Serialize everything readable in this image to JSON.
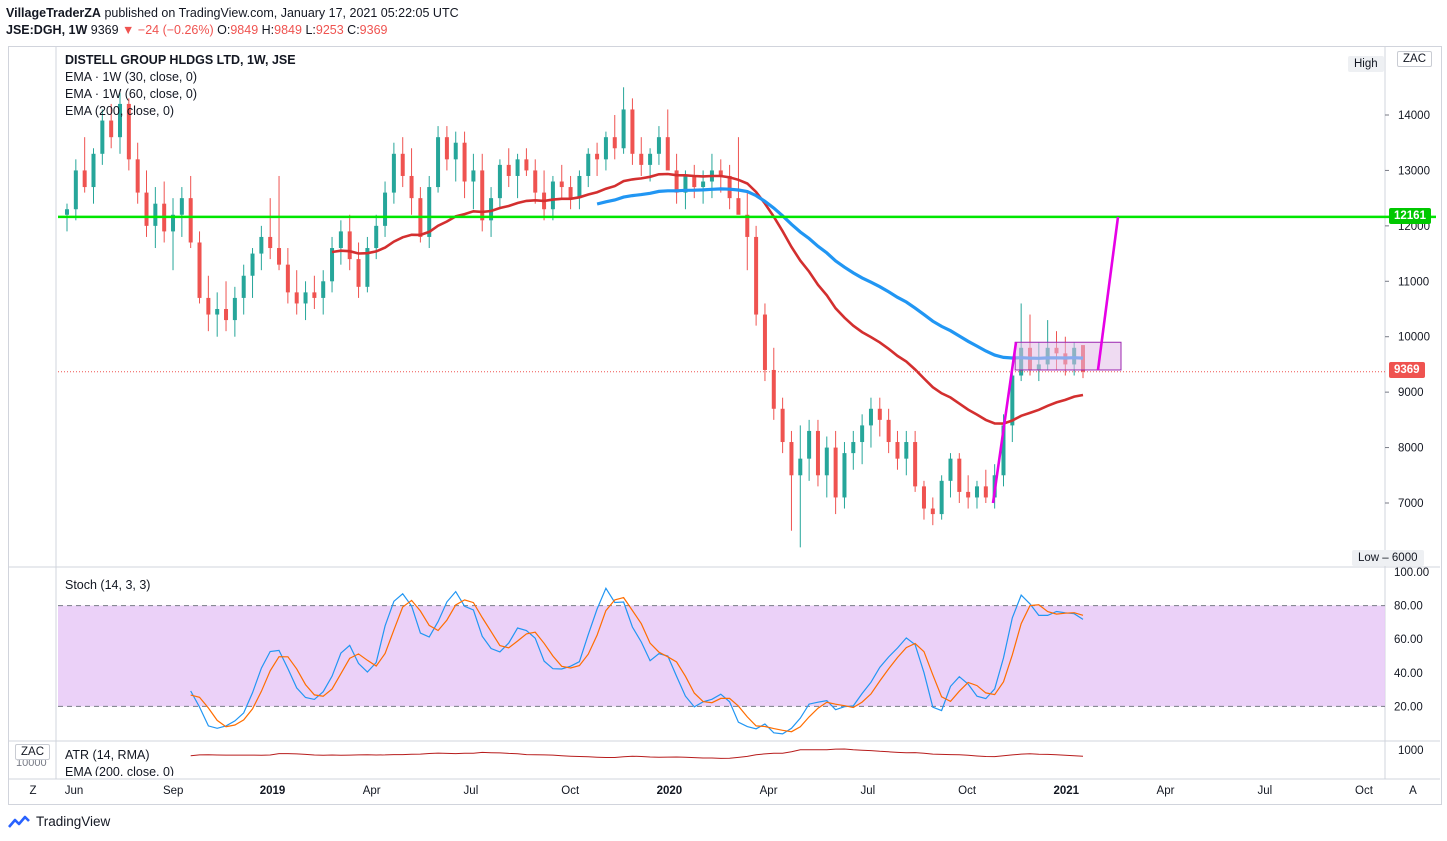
{
  "header": {
    "publisher": "VillageTraderZA",
    "published_text": "published on TradingView.com, January 17, 2021 05:22:05 UTC",
    "symbol": "JSE:DGH, 1W",
    "last": "9369",
    "change": "−24 (−0.26%)",
    "open_label": "O:",
    "open": "9849",
    "high_label": "H:",
    "high": "9849",
    "low_label": "L:",
    "low": "9253",
    "close_label": "C:",
    "close": "9369"
  },
  "legend": {
    "title": "DISTELL GROUP HLDGS LTD, 1W, JSE",
    "ema1": "EMA · 1W (30, close, 0)",
    "ema2": "EMA · 1W (60, close, 0)",
    "ema3": "EMA (200, close, 0)",
    "stoch": "Stoch (14, 3, 3)",
    "atr": "ATR (14, RMA)",
    "atr_ema": "EMA (200, close, 0)",
    "atr_partial": "10000"
  },
  "price_axis": {
    "currency": "ZAC",
    "high_label": "High",
    "low_label": "Low",
    "low_value": "6000",
    "ticks": [
      "14000",
      "13000",
      "12000",
      "11000",
      "10000",
      "9000",
      "8000",
      "7000"
    ],
    "level_label": "12161",
    "last_label": "9369"
  },
  "stoch_axis": {
    "ticks": [
      "100.00",
      "80.00",
      "60.00",
      "40.00",
      "20.00"
    ]
  },
  "atr_axis": {
    "ticks": [
      "1000"
    ],
    "currency": "ZAC"
  },
  "time_axis": {
    "labels": [
      "Jun",
      "Sep",
      "2019",
      "Apr",
      "Jul",
      "Oct",
      "2020",
      "Apr",
      "Jul",
      "Oct",
      "2021",
      "Apr",
      "Jul",
      "Oct"
    ],
    "left_button": "Z",
    "right_button": "A"
  },
  "footer": {
    "brand": "TradingView"
  },
  "colors": {
    "up": "#26a69a",
    "down": "#ef5350",
    "ema30": "#d32f2f",
    "ema60": "#2196f3",
    "support": "#00e600",
    "projection": "#e600e6",
    "box": "#e1bee7",
    "stoch_k": "#2196f3",
    "stoch_d": "#ff6d00",
    "stoch_band": "#e8c9f7",
    "atr": "#b71c1c"
  },
  "chart_data": [
    {
      "type": "candlestick",
      "title": "DISTELL GROUP HLDGS LTD, 1W, JSE",
      "ylim": [
        6000,
        14500
      ],
      "x_range": [
        "2018-06",
        "2021-10"
      ],
      "candles_ohlc_weekly": [
        [
          12200,
          12400,
          11900,
          12300
        ],
        [
          12300,
          13200,
          12100,
          13000
        ],
        [
          13000,
          13600,
          12600,
          12700
        ],
        [
          12700,
          13400,
          12400,
          13300
        ],
        [
          13300,
          14100,
          13100,
          13900
        ],
        [
          13900,
          14200,
          13400,
          13600
        ],
        [
          13600,
          14400,
          13300,
          14200
        ],
        [
          14200,
          14300,
          13000,
          13200
        ],
        [
          13200,
          13500,
          12400,
          12600
        ],
        [
          12600,
          13000,
          11800,
          12000
        ],
        [
          12000,
          12700,
          11600,
          12400
        ],
        [
          12400,
          12800,
          11700,
          11900
        ],
        [
          11900,
          12500,
          11200,
          12200
        ],
        [
          12200,
          12700,
          11800,
          12500
        ],
        [
          12500,
          12900,
          11600,
          11700
        ],
        [
          11700,
          11900,
          10600,
          10700
        ],
        [
          10700,
          11100,
          10100,
          10400
        ],
        [
          10400,
          10800,
          10000,
          10500
        ],
        [
          10500,
          11000,
          10100,
          10300
        ],
        [
          10300,
          10900,
          10000,
          10700
        ],
        [
          10700,
          11300,
          10400,
          11100
        ],
        [
          11100,
          11600,
          10700,
          11500
        ],
        [
          11500,
          12000,
          11200,
          11800
        ],
        [
          11800,
          12500,
          11400,
          11600
        ],
        [
          11600,
          12900,
          11200,
          11300
        ],
        [
          11300,
          11600,
          10600,
          10800
        ],
        [
          10800,
          11200,
          10400,
          10600
        ],
        [
          10600,
          11000,
          10300,
          10800
        ],
        [
          10800,
          11100,
          10500,
          10700
        ],
        [
          10700,
          11200,
          10400,
          11000
        ],
        [
          11000,
          11800,
          10800,
          11600
        ],
        [
          11600,
          12100,
          11300,
          11900
        ],
        [
          11900,
          12200,
          11200,
          11400
        ],
        [
          11400,
          11700,
          10700,
          10900
        ],
        [
          10900,
          11800,
          10800,
          11600
        ],
        [
          11600,
          12200,
          11400,
          12000
        ],
        [
          12000,
          12800,
          11800,
          12600
        ],
        [
          12600,
          13500,
          12400,
          13300
        ],
        [
          13300,
          13600,
          12700,
          12900
        ],
        [
          12900,
          13400,
          12200,
          12500
        ],
        [
          12500,
          12700,
          11700,
          11800
        ],
        [
          11800,
          12900,
          11600,
          12700
        ],
        [
          12700,
          13800,
          12600,
          13600
        ],
        [
          13600,
          13800,
          13000,
          13200
        ],
        [
          13200,
          13700,
          12800,
          13500
        ],
        [
          13500,
          13700,
          12500,
          12800
        ],
        [
          12800,
          13300,
          12300,
          13000
        ],
        [
          13000,
          13300,
          11900,
          12100
        ],
        [
          12100,
          12700,
          11800,
          12500
        ],
        [
          12500,
          13200,
          12300,
          13100
        ],
        [
          13100,
          13400,
          12700,
          12900
        ],
        [
          12900,
          13300,
          12500,
          13200
        ],
        [
          13200,
          13400,
          12900,
          13000
        ],
        [
          13000,
          13200,
          12400,
          12600
        ],
        [
          12600,
          13000,
          12100,
          12300
        ],
        [
          12300,
          12900,
          12100,
          12800
        ],
        [
          12800,
          13100,
          12500,
          12700
        ],
        [
          12700,
          12900,
          12300,
          12500
        ],
        [
          12500,
          13000,
          12300,
          12900
        ],
        [
          12900,
          13400,
          12700,
          13300
        ],
        [
          13300,
          13500,
          12900,
          13200
        ],
        [
          13200,
          13700,
          13000,
          13600
        ],
        [
          13600,
          14000,
          13200,
          13400
        ],
        [
          13400,
          14500,
          13300,
          14100
        ],
        [
          14100,
          14300,
          13100,
          13300
        ],
        [
          13300,
          13600,
          12900,
          13100
        ],
        [
          13100,
          13400,
          12800,
          13300
        ],
        [
          13300,
          13800,
          13100,
          13600
        ],
        [
          13600,
          14100,
          13200,
          13000
        ],
        [
          13000,
          13300,
          12400,
          12600
        ],
        [
          12600,
          13000,
          12300,
          12900
        ],
        [
          12900,
          13100,
          12500,
          12700
        ],
        [
          12700,
          13000,
          12400,
          12800
        ],
        [
          12800,
          13300,
          12500,
          13000
        ],
        [
          13000,
          13200,
          12600,
          12900
        ],
        [
          12900,
          13100,
          12300,
          12500
        ],
        [
          12500,
          13600,
          12300,
          12200
        ],
        [
          12200,
          12600,
          11200,
          11800
        ],
        [
          11800,
          12000,
          10200,
          10400
        ],
        [
          10400,
          10600,
          9200,
          9400
        ],
        [
          9400,
          9800,
          8500,
          8700
        ],
        [
          8700,
          8900,
          7900,
          8100
        ],
        [
          8100,
          8300,
          6500,
          7500
        ],
        [
          7500,
          8400,
          6200,
          7800
        ],
        [
          7800,
          8500,
          7400,
          8300
        ],
        [
          8300,
          8500,
          7300,
          7500
        ],
        [
          7500,
          8200,
          7100,
          8000
        ],
        [
          8000,
          8300,
          6800,
          7100
        ],
        [
          7100,
          8100,
          6900,
          7900
        ],
        [
          7900,
          8300,
          7600,
          8100
        ],
        [
          8100,
          8600,
          7700,
          8400
        ],
        [
          8400,
          8900,
          8000,
          8700
        ],
        [
          8700,
          8900,
          8200,
          8500
        ],
        [
          8500,
          8700,
          7900,
          8100
        ],
        [
          8100,
          8300,
          7600,
          7800
        ],
        [
          7800,
          8300,
          7500,
          8100
        ],
        [
          8100,
          8300,
          7200,
          7300
        ],
        [
          7300,
          7400,
          6700,
          6900
        ],
        [
          6900,
          7100,
          6600,
          6800
        ],
        [
          6800,
          7500,
          6700,
          7400
        ],
        [
          7400,
          7900,
          7100,
          7800
        ],
        [
          7800,
          7900,
          7000,
          7200
        ],
        [
          7200,
          7500,
          6900,
          7100
        ],
        [
          7100,
          7400,
          6900,
          7300
        ],
        [
          7300,
          7600,
          7000,
          7100
        ],
        [
          7100,
          7700,
          6900,
          7500
        ],
        [
          7500,
          8600,
          7300,
          8400
        ],
        [
          8400,
          9500,
          8100,
          9300
        ],
        [
          9300,
          10600,
          9200,
          9800
        ],
        [
          9800,
          10400,
          9300,
          9400
        ],
        [
          9400,
          9900,
          9200,
          9500
        ],
        [
          9500,
          10300,
          9400,
          9800
        ],
        [
          9800,
          10100,
          9400,
          9700
        ],
        [
          9700,
          10000,
          9300,
          9500
        ],
        [
          9500,
          9900,
          9300,
          9800
        ],
        [
          9849,
          9849,
          9253,
          9369
        ]
      ],
      "ema30": "computed",
      "ema60": "computed",
      "support_level": 12161,
      "last_price": 9369,
      "box": {
        "top": 9900,
        "bottom": 9400
      },
      "projection_to": 12161
    },
    {
      "type": "line",
      "title": "Stoch (14, 3, 3)",
      "ylim": [
        0,
        100
      ],
      "bands": [
        20,
        80
      ]
    },
    {
      "type": "line",
      "title": "ATR (14, RMA)",
      "ylim": [
        0,
        1200
      ]
    }
  ]
}
